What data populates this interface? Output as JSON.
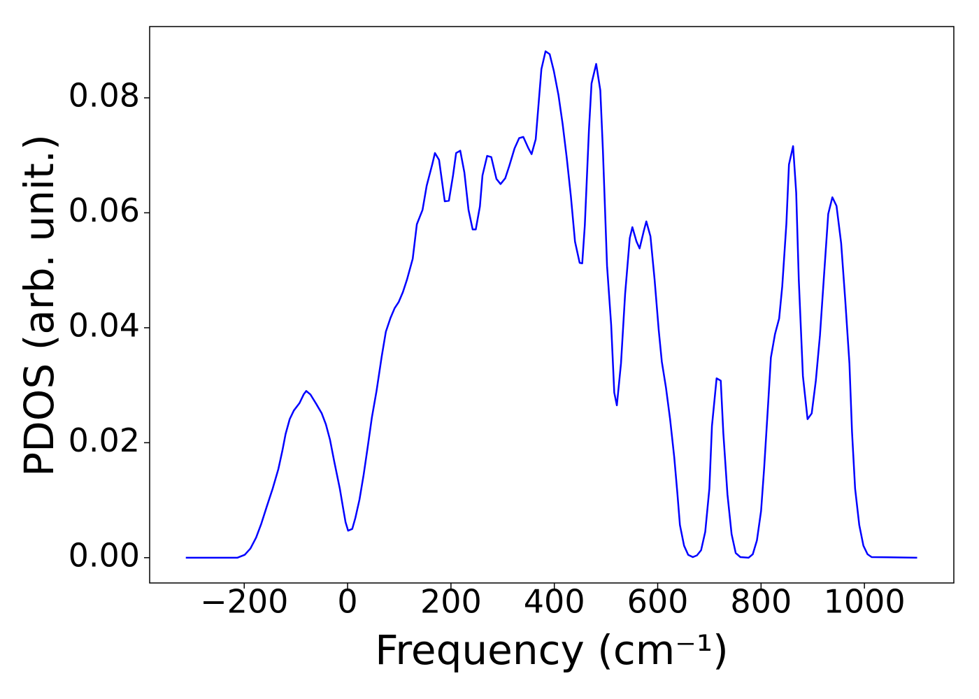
{
  "chart_data": {
    "type": "line",
    "xlabel": "Frequency (cm⁻¹)",
    "ylabel": "PDOS (arb. unit.)",
    "xlim": [
      -383,
      1173
    ],
    "ylim": [
      -0.0044,
      0.0924
    ],
    "xticks": [
      {
        "value": -200,
        "label": "−200"
      },
      0,
      200,
      400,
      600,
      800,
      1000
    ],
    "yticks": [
      {
        "value": 0,
        "label": "0.00"
      },
      {
        "value": 0.02,
        "label": "0.02"
      },
      {
        "value": 0.04,
        "label": "0.04"
      },
      {
        "value": 0.06,
        "label": "0.06"
      },
      {
        "value": 0.08,
        "label": "0.08"
      }
    ],
    "series": [
      {
        "color": "#0000ff",
        "x": [
          -313,
          -213,
          -199,
          -188,
          -177,
          -167,
          -156,
          -145,
          -134,
          -126,
          -120,
          -112,
          -104,
          -93,
          -85,
          -80,
          -72,
          -61,
          -50,
          -42,
          -34,
          -26,
          -15,
          -9,
          -4,
          1,
          9,
          15,
          23,
          31,
          39,
          47,
          56,
          66,
          74,
          83,
          91,
          99,
          107,
          115,
          126,
          134,
          145,
          153,
          164,
          169,
          177,
          188,
          196,
          204,
          210,
          218,
          226,
          234,
          242,
          248,
          256,
          261,
          270,
          278,
          288,
          296,
          305,
          313,
          323,
          332,
          340,
          350,
          356,
          364,
          375,
          383,
          391,
          399,
          408,
          416,
          424,
          432,
          440,
          449,
          454,
          459,
          467,
          472,
          481,
          489,
          494,
          502,
          510,
          516,
          521,
          529,
          537,
          546,
          551,
          559,
          565,
          573,
          578,
          586,
          594,
          602,
          608,
          616,
          624,
          632,
          638,
          643,
          651,
          659,
          668,
          676,
          684,
          692,
          700,
          705,
          714,
          722,
          727,
          735,
          743,
          751,
          760,
          776,
          784,
          792,
          800,
          806,
          814,
          819,
          827,
          835,
          841,
          849,
          854,
          862,
          868,
          873,
          881,
          890,
          898,
          906,
          914,
          922,
          930,
          938,
          946,
          955,
          963,
          971,
          976,
          982,
          990,
          998,
          1006,
          1014,
          1102
        ],
        "values": [
          0,
          0,
          0.0005,
          0.0016,
          0.0035,
          0.0059,
          0.009,
          0.012,
          0.0154,
          0.0187,
          0.0215,
          0.0241,
          0.0256,
          0.0269,
          0.0284,
          0.029,
          0.0284,
          0.0268,
          0.0251,
          0.0232,
          0.0205,
          0.0168,
          0.012,
          0.0088,
          0.0062,
          0.0047,
          0.005,
          0.0069,
          0.0101,
          0.0144,
          0.0193,
          0.0244,
          0.029,
          0.035,
          0.0393,
          0.0417,
          0.0434,
          0.0445,
          0.0462,
          0.0484,
          0.052,
          0.058,
          0.0605,
          0.0647,
          0.0685,
          0.0704,
          0.0692,
          0.062,
          0.0621,
          0.0665,
          0.0704,
          0.0708,
          0.067,
          0.0605,
          0.0571,
          0.0571,
          0.0611,
          0.0665,
          0.0699,
          0.0697,
          0.0659,
          0.065,
          0.066,
          0.0682,
          0.0712,
          0.073,
          0.0732,
          0.0712,
          0.0702,
          0.0728,
          0.085,
          0.0881,
          0.0876,
          0.0847,
          0.0805,
          0.0755,
          0.0696,
          0.0629,
          0.055,
          0.0513,
          0.0512,
          0.0578,
          0.0744,
          0.0825,
          0.0859,
          0.0813,
          0.0709,
          0.0508,
          0.0405,
          0.0287,
          0.0265,
          0.0338,
          0.0459,
          0.0556,
          0.0575,
          0.055,
          0.0538,
          0.0568,
          0.0585,
          0.0559,
          0.0484,
          0.0396,
          0.0341,
          0.0296,
          0.0241,
          0.0175,
          0.0113,
          0.0057,
          0.0021,
          0.0005,
          0.0001,
          0.0004,
          0.0013,
          0.0045,
          0.012,
          0.0229,
          0.0312,
          0.0308,
          0.0217,
          0.011,
          0.0041,
          0.0008,
          0.0001,
          0,
          0.0006,
          0.003,
          0.0081,
          0.0156,
          0.0272,
          0.0348,
          0.0389,
          0.0416,
          0.0472,
          0.0581,
          0.0684,
          0.0716,
          0.0635,
          0.0484,
          0.0316,
          0.0241,
          0.0251,
          0.0308,
          0.0387,
          0.0493,
          0.0598,
          0.0627,
          0.0612,
          0.0547,
          0.0447,
          0.0338,
          0.0219,
          0.012,
          0.0057,
          0.0021,
          0.0006,
          0.0001,
          0
        ]
      }
    ]
  }
}
